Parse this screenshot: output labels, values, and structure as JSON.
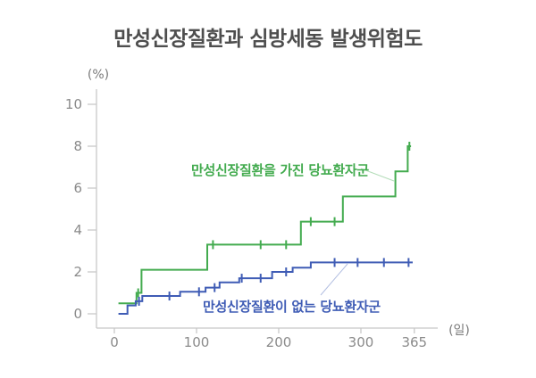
{
  "chart_data": {
    "type": "line",
    "subtype": "kaplan-meier-step",
    "title": "만성신장질환과 심방세동 발생위험도",
    "xlabel": "(일)",
    "ylabel": "(%)",
    "xlim": [
      0,
      365
    ],
    "ylim": [
      0,
      10
    ],
    "x_ticks": [
      0,
      100,
      200,
      300,
      365
    ],
    "y_ticks": [
      0,
      2,
      4,
      6,
      8,
      10
    ],
    "grid": false,
    "legend_position": "inline-annotations",
    "series": [
      {
        "name": "만성신장질환을 가진 당뇨환자군",
        "color": "#43ab4f",
        "points": [
          [
            5,
            0.5
          ],
          [
            27,
            1.0
          ],
          [
            33,
            2.1
          ],
          [
            113,
            3.3
          ],
          [
            227,
            4.4
          ],
          [
            278,
            5.6
          ],
          [
            342,
            6.8
          ],
          [
            357,
            8.0
          ],
          [
            361,
            8.0
          ]
        ],
        "censor_marks": [
          [
            29,
            1.0
          ],
          [
            120,
            3.3
          ],
          [
            178,
            3.3
          ],
          [
            209,
            3.3
          ],
          [
            239,
            4.4
          ],
          [
            268,
            4.4
          ],
          [
            359,
            8.0
          ]
        ]
      },
      {
        "name": "만성신장질환이 없는 당뇨환자군",
        "color": "#3f5cb5",
        "points": [
          [
            5,
            0
          ],
          [
            16,
            0.4
          ],
          [
            26,
            0.6
          ],
          [
            34,
            0.85
          ],
          [
            80,
            1.05
          ],
          [
            111,
            1.25
          ],
          [
            128,
            1.5
          ],
          [
            152,
            1.7
          ],
          [
            192,
            2.0
          ],
          [
            217,
            2.2
          ],
          [
            239,
            2.45
          ],
          [
            363,
            2.45
          ]
        ],
        "censor_marks": [
          [
            30,
            0.6
          ],
          [
            67,
            0.85
          ],
          [
            103,
            1.05
          ],
          [
            122,
            1.25
          ],
          [
            155,
            1.7
          ],
          [
            178,
            1.7
          ],
          [
            209,
            2.0
          ],
          [
            268,
            2.45
          ],
          [
            296,
            2.45
          ],
          [
            328,
            2.45
          ],
          [
            358,
            2.45
          ]
        ]
      }
    ]
  },
  "colors": {
    "title_text": "#4e4e4e",
    "axis_line": "#c8c8c8",
    "tick_label": "#8b8b8b",
    "axis_unit": "#7a7a7a",
    "background": "#ffffff"
  }
}
